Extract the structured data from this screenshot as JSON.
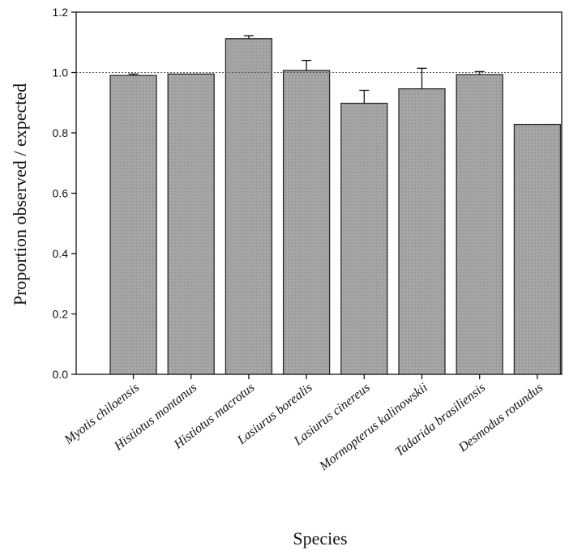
{
  "chart_data": {
    "type": "bar",
    "title": "",
    "xlabel": "Species",
    "ylabel": "Proportion observed / expected",
    "ylim": [
      0,
      1.2
    ],
    "yticks": [
      0.0,
      0.2,
      0.4,
      0.6,
      0.8,
      1.0,
      1.2
    ],
    "ytick_labels": [
      "0.0",
      "0.2",
      "0.4",
      "0.6",
      "0.8",
      "1.0",
      "1.2"
    ],
    "reference_line": 1.0,
    "categories": [
      "Myotis chiloensis",
      "Histiotus montanus",
      "Histiotus macrotus",
      "Lasiurus borealis",
      "Lasiurus cinereus",
      "Mormopterus kalinowskii",
      "Tadarida brasiliensis",
      "Desmodus rotundus"
    ],
    "values": [
      0.99,
      0.995,
      1.112,
      1.007,
      0.898,
      0.946,
      0.993,
      0.828
    ],
    "error_upper": [
      0.005,
      0.0,
      0.01,
      0.033,
      0.043,
      0.068,
      0.01,
      0.0
    ],
    "grid": false,
    "colors": {
      "bar": "#a3a3a3",
      "bar_stroke": "#2a2a2a",
      "axis": "#111111",
      "refline": "#555555"
    }
  }
}
